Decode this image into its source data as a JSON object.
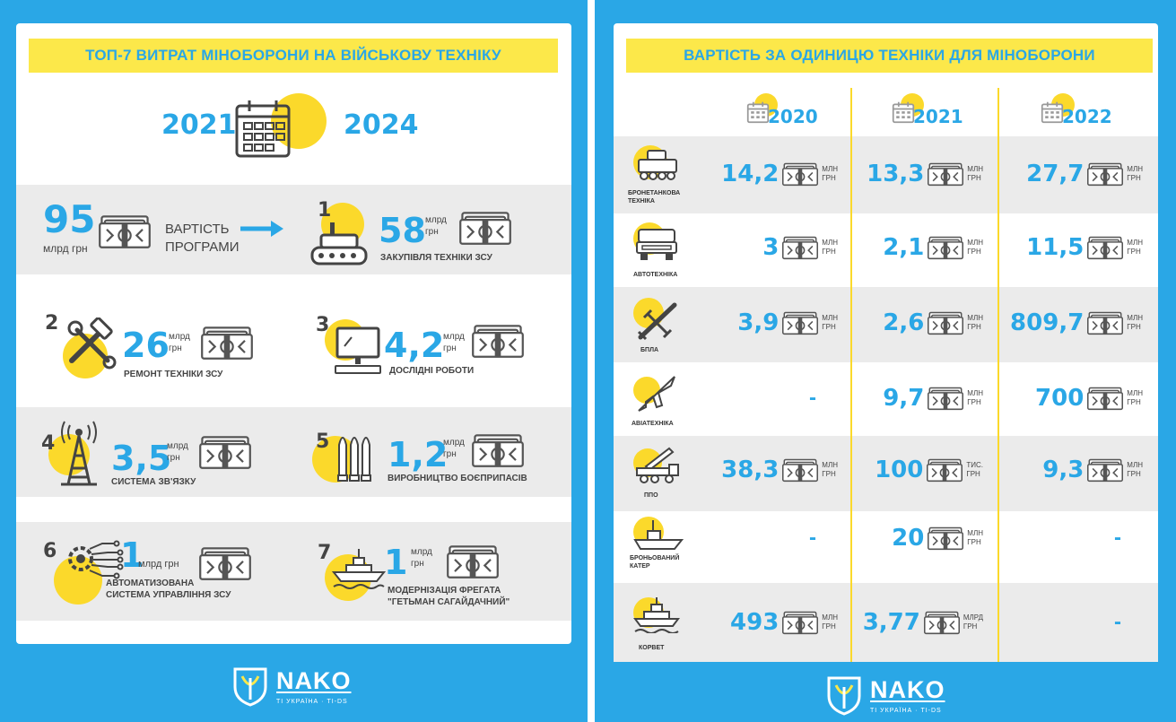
{
  "left": {
    "title": "ТОП-7 ВИТРАТ МІНОБОРОНИ НА ВІЙСЬКОВУ ТЕХНІКУ",
    "year_from": "2021",
    "year_to": "2024",
    "program": {
      "value": "95",
      "unit": "млрд грн",
      "label_1": "ВАРТІСТЬ",
      "label_2": "ПРОГРАМИ"
    },
    "items": [
      {
        "rank": "1",
        "value": "58",
        "unit_1": "млрд",
        "unit_2": "грн",
        "label_1": "ЗАКУПІВЛЯ ТЕХНІКИ ЗСУ",
        "label_2": "",
        "icon": "tank-icon"
      },
      {
        "rank": "2",
        "value": "26",
        "unit_1": "млрд",
        "unit_2": "грн",
        "label_1": "РЕМОНТ ТЕХНІКИ ЗСУ",
        "label_2": "",
        "icon": "tools-icon"
      },
      {
        "rank": "3",
        "value": "4,2",
        "unit_1": "млрд",
        "unit_2": "грн",
        "label_1": "ДОСЛІДНІ РОБОТИ",
        "label_2": "",
        "icon": "computer-icon"
      },
      {
        "rank": "4",
        "value": "3,5",
        "unit_1": "млрд",
        "unit_2": "грн",
        "label_1": "СИСТЕМА ЗВ'ЯЗКУ",
        "label_2": "",
        "icon": "radio-tower-icon"
      },
      {
        "rank": "5",
        "value": "1,2",
        "unit_1": "млрд",
        "unit_2": "грн",
        "label_1": "ВИРОБНИЦТВО БОЄПРИПАСІВ",
        "label_2": "",
        "icon": "ammo-icon"
      },
      {
        "rank": "6",
        "value": "1",
        "unit_1": "млрд грн",
        "unit_2": "",
        "label_1": "АВТОМАТИЗОВАНА",
        "label_2": "СИСТЕМА УПРАВЛІННЯ ЗСУ",
        "icon": "gear-circuit-icon"
      },
      {
        "rank": "7",
        "value": "1",
        "unit_1": "млрд",
        "unit_2": "грн",
        "label_1": "МОДЕРНІЗАЦІЯ ФРЕГАТА",
        "label_2": "\"ГЕТЬМАН САГАЙДАЧНИЙ\"",
        "icon": "frigate-icon"
      }
    ]
  },
  "right": {
    "title": "ВАРТІСТЬ ЗА ОДИНИЦЮ ТЕХНІКИ ДЛЯ МІНОБОРОНИ",
    "years": [
      "2020",
      "2021",
      "2022"
    ],
    "rows": [
      {
        "label": "БРОНЕТАНКОВА ТЕХНІКА",
        "icon": "armored-vehicle-icon",
        "cells": [
          {
            "v": "14,2",
            "u1": "МЛН",
            "u2": "ГРН"
          },
          {
            "v": "13,3",
            "u1": "МЛН",
            "u2": "ГРН"
          },
          {
            "v": "27,7",
            "u1": "МЛН",
            "u2": "ГРН"
          }
        ]
      },
      {
        "label": "АВТОТЕХНІКА",
        "icon": "truck-icon",
        "cells": [
          {
            "v": "3",
            "u1": "МЛН",
            "u2": "ГРН"
          },
          {
            "v": "2,1",
            "u1": "МЛН",
            "u2": "ГРН"
          },
          {
            "v": "11,5",
            "u1": "МЛН",
            "u2": "ГРН"
          }
        ]
      },
      {
        "label": "БПЛА",
        "icon": "drone-icon",
        "cells": [
          {
            "v": "3,9",
            "u1": "МЛН",
            "u2": "ГРН"
          },
          {
            "v": "2,6",
            "u1": "МЛН",
            "u2": "ГРН"
          },
          {
            "v": "809,7",
            "u1": "МЛН",
            "u2": "ГРН"
          }
        ]
      },
      {
        "label": "АВІАТЕХНІКА",
        "icon": "jet-icon",
        "cells": [
          {
            "v": "-",
            "u1": "",
            "u2": ""
          },
          {
            "v": "9,7",
            "u1": "МЛН",
            "u2": "ГРН"
          },
          {
            "v": "700",
            "u1": "МЛН",
            "u2": "ГРН"
          }
        ]
      },
      {
        "label": "ППО",
        "icon": "air-defense-icon",
        "cells": [
          {
            "v": "38,3",
            "u1": "МЛН",
            "u2": "ГРН"
          },
          {
            "v": "100",
            "u1": "ТИС.",
            "u2": "ГРН"
          },
          {
            "v": "9,3",
            "u1": "МЛН",
            "u2": "ГРН"
          }
        ]
      },
      {
        "label": "БРОНЬОВАНИЙ КАТЕР",
        "icon": "boat-icon",
        "cells": [
          {
            "v": "-",
            "u1": "",
            "u2": ""
          },
          {
            "v": "20",
            "u1": "МЛН",
            "u2": "ГРН"
          },
          {
            "v": "-",
            "u1": "",
            "u2": ""
          }
        ]
      },
      {
        "label": "КОРВЕТ",
        "icon": "corvette-icon",
        "cells": [
          {
            "v": "493",
            "u1": "МЛН",
            "u2": "ГРН"
          },
          {
            "v": "3,77",
            "u1": "МЛРД",
            "u2": "ГРН"
          },
          {
            "v": "-",
            "u1": "",
            "u2": ""
          }
        ]
      }
    ]
  },
  "logo": {
    "name": "NAKO",
    "sub": "ТІ УКРАЇНА · TI-DS"
  },
  "colors": {
    "blue": "#2aa7e6",
    "yellow": "#fbd92b",
    "banner": "#fce84a",
    "band": "#ebebeb"
  }
}
